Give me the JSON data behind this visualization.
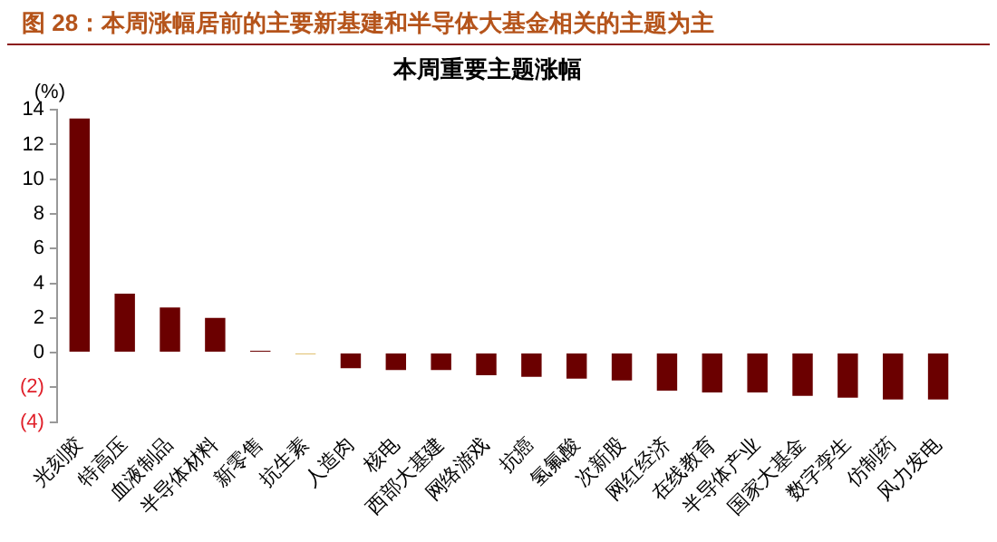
{
  "chart_data": {
    "type": "bar",
    "title": "本周重要主题涨幅",
    "subtitle": "图 28：本周涨幅居前的主要新基建和半导体大基金相关的主题为主",
    "ylabel": "(%)",
    "categories": [
      "光刻胶",
      "特高压",
      "血液制品",
      "半导体材料",
      "新零售",
      "抗生素",
      "人造肉",
      "核电",
      "西部大基建",
      "网络游戏",
      "抗癌",
      "氢氟酸",
      "次新股",
      "网红经济",
      "在线教育",
      "半导体产业",
      "国家大基金",
      "数字孪生",
      "仿制药",
      "风力发电"
    ],
    "values": [
      13.5,
      3.4,
      2.6,
      2.0,
      0.1,
      -0.1,
      -0.9,
      -1.0,
      -1.0,
      -1.3,
      -1.4,
      -1.5,
      -1.6,
      -2.2,
      -2.3,
      -2.3,
      -2.5,
      -2.6,
      -2.7,
      -2.7
    ],
    "colors": [
      "#6b0000",
      "#6b0000",
      "#6b0000",
      "#6b0000",
      "#6b0000",
      "#e0c070",
      "#6b0000",
      "#6b0000",
      "#6b0000",
      "#6b0000",
      "#6b0000",
      "#6b0000",
      "#6b0000",
      "#6b0000",
      "#6b0000",
      "#6b0000",
      "#6b0000",
      "#6b0000",
      "#6b0000",
      "#6b0000"
    ],
    "ylim": [
      -4,
      14
    ],
    "yticks": [
      {
        "value": -4,
        "label": "(4)"
      },
      {
        "value": -2,
        "label": "(2)"
      },
      0,
      2,
      4,
      6,
      8,
      10,
      12,
      14
    ],
    "grid": false,
    "legend": false
  }
}
